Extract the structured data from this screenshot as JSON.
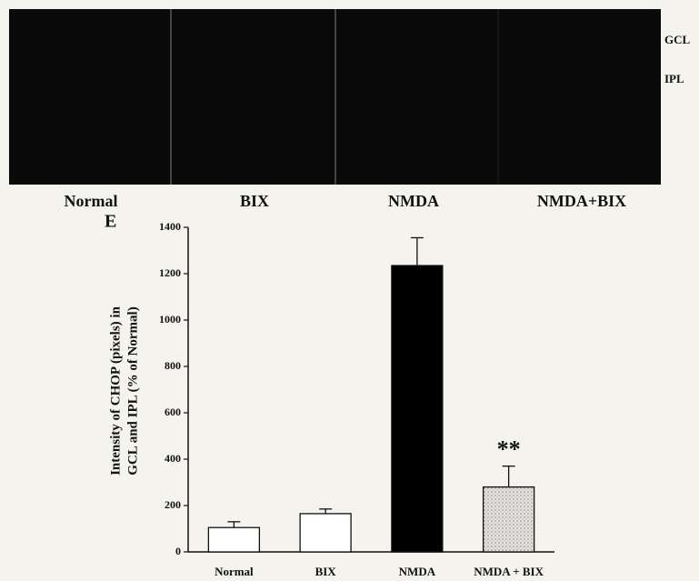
{
  "panel": {
    "columns": [
      "Normal",
      "BIX",
      "NMDA",
      "NMDA+BIX"
    ],
    "layers": [
      "GCL",
      "IPL"
    ]
  },
  "chart_data": {
    "type": "bar",
    "panel_letter": "E",
    "y_label": [
      "Intensity of CHOP (pixels) in",
      "GCL and IPL (% of Normal)"
    ],
    "categories": [
      "Normal",
      "BIX",
      "NMDA",
      "NMDA + BIX"
    ],
    "values": [
      105,
      165,
      1235,
      280
    ],
    "errors": [
      25,
      20,
      120,
      90
    ],
    "colors": [
      "#ffffff",
      "#ffffff",
      "#000000",
      "#d4d2cc"
    ],
    "annotations": [
      null,
      null,
      null,
      "**"
    ],
    "ylim": [
      0,
      1400
    ],
    "yticks": [
      0,
      200,
      400,
      600,
      800,
      1000,
      1200,
      1400
    ]
  }
}
